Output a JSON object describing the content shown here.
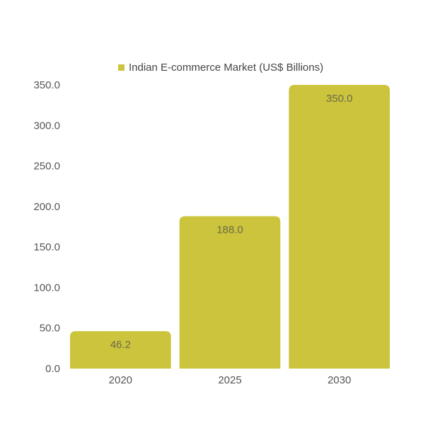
{
  "chart_data": {
    "type": "bar",
    "categories": [
      "2020",
      "2025",
      "2030"
    ],
    "series": [
      {
        "name": "Indian E-commerce Market (US$ Billions)",
        "values": [
          46.2,
          188.0,
          350.0
        ]
      }
    ],
    "data_labels": [
      "46.2",
      "188.0",
      "350.0"
    ],
    "y_ticks": [
      "0.0",
      "50.0",
      "100.0",
      "150.0",
      "200.0",
      "250.0",
      "300.0",
      "350.0"
    ],
    "ylim": [
      0,
      350
    ],
    "grid": false,
    "legend_position": "top-right",
    "bar_color": "#cbc43c",
    "text_color": "#555555"
  }
}
